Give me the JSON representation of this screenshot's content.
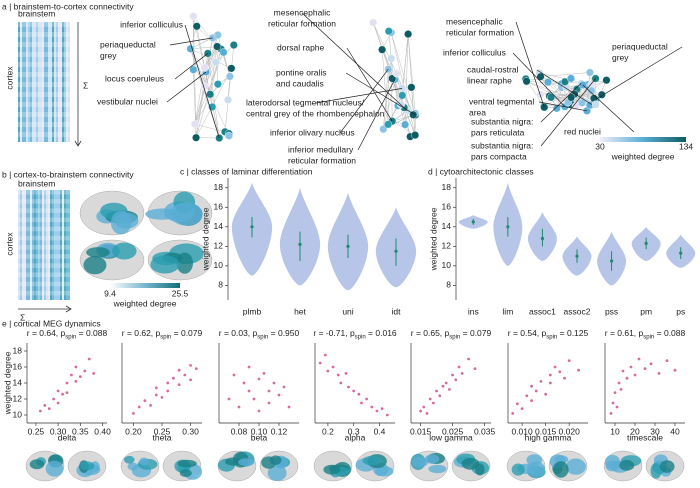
{
  "panel_a": {
    "title": "a | brainstem-to-cortex connectivity",
    "brainstem": "brainstem",
    "cortex": "cortex",
    "sum": "Σ",
    "labels": [
      [
        "inferior colliculus"
      ],
      [
        "periaqueductal",
        "grey"
      ],
      [
        "locus coeruleus"
      ],
      [
        "vestibular nuclei"
      ],
      [
        "mesencephalic",
        "reticular formation"
      ],
      [
        "dorsal raphe"
      ],
      [
        "pontine oralis",
        "and caudalis"
      ],
      [
        "laterodorsal tegmental nucleus/",
        "central grey of the rhombencephalon"
      ],
      [
        "inferior olivary nucleus"
      ],
      [
        "inferior medullary",
        "reticular formation"
      ],
      [
        "mesencephalic",
        "reticular formation"
      ],
      [
        "periaqueductal",
        "grey"
      ],
      [
        "inferior colliculus"
      ],
      [
        "caudal-rostral",
        "linear raphe"
      ],
      [
        "ventral tegmental",
        "area"
      ],
      [
        "substantia nigra:",
        "pars reticulata"
      ],
      [
        "red nuclei"
      ],
      [
        "substantia nigra:",
        "pars compacta"
      ]
    ],
    "colorbar": {
      "ticks": [
        30,
        134
      ],
      "label": "weighted degree"
    }
  },
  "panel_b": {
    "title": "b | cortex-to-brainstem connectivity",
    "brainstem": "brainstem",
    "cortex": "cortex",
    "sum": "Σ",
    "colorbar": {
      "ticks": [
        9.4,
        25.5
      ],
      "label": "weighted degree"
    }
  },
  "panel_e": {
    "title": "e | cortical MEG dynamics"
  },
  "chart_data": [
    {
      "type": "violin",
      "title": "c | classes of laminar differentiation",
      "ylabel": "weighted degree",
      "categories": [
        "plmb",
        "het",
        "uni",
        "idt"
      ],
      "median": [
        14,
        12.2,
        12,
        11.5
      ],
      "q1": [
        12.9,
        10.5,
        10.8,
        10
      ],
      "q3": [
        15,
        13.5,
        13.2,
        12.8
      ],
      "min": [
        9,
        8,
        7.5,
        7.8
      ],
      "max": [
        18.5,
        18,
        17.5,
        16
      ],
      "ylim": [
        6.5,
        19
      ],
      "yticks": [
        8,
        10,
        12,
        14,
        16,
        18
      ],
      "color": "#b7c5e8",
      "median_color": "#1f8a70"
    },
    {
      "type": "violin",
      "title": "d | cytoarchitectonic classes",
      "ylabel": "weighted degree",
      "categories": [
        "ins",
        "lim",
        "assoc1",
        "assoc2",
        "pss",
        "pm",
        "ps"
      ],
      "median": [
        14.5,
        14,
        12.8,
        11,
        10.5,
        12.3,
        11.3
      ],
      "q1": [
        14.2,
        13,
        12,
        10.3,
        9.5,
        11.7,
        10.7
      ],
      "q3": [
        14.8,
        15,
        13.8,
        11.7,
        11.5,
        12.9,
        11.9
      ],
      "min": [
        13.8,
        10,
        10.5,
        9,
        8,
        10.5,
        9.8
      ],
      "max": [
        15.2,
        18.5,
        15.5,
        13,
        13.5,
        14,
        13.2
      ],
      "ylim": [
        6.5,
        19
      ],
      "yticks": [
        8,
        10,
        12,
        14,
        16,
        18
      ],
      "color": "#b7c5e8",
      "median_color": "#1f8a70"
    },
    {
      "type": "scatter",
      "title": [
        "r = 0.64, p",
        "spin",
        " = 0.088"
      ],
      "xlabel": "delta",
      "ylabel": "weighted degree",
      "color": "#d66aa0",
      "x": [
        0.26,
        0.27,
        0.28,
        0.29,
        0.3,
        0.3,
        0.31,
        0.32,
        0.32,
        0.33,
        0.34,
        0.34,
        0.35,
        0.36,
        0.37,
        0.38
      ],
      "y": [
        10.5,
        11.2,
        10.8,
        12,
        11.5,
        13,
        12.6,
        14,
        12.8,
        15,
        14.2,
        16,
        14.8,
        15.5,
        17,
        15.2
      ],
      "xlim": [
        0.23,
        0.41
      ],
      "xticks": [
        0.25,
        {
          "value": 0.3,
          "label": "0.30"
        },
        0.35,
        {
          "value": 0.4,
          "label": "0.40"
        }
      ],
      "ylim": [
        9,
        19
      ],
      "yticks": [
        10,
        12,
        14,
        16,
        18
      ]
    },
    {
      "type": "scatter",
      "title": [
        "r = 0.62, p",
        "spin",
        " = 0.079"
      ],
      "xlabel": "theta",
      "color": "#d66aa0",
      "x": [
        0.2,
        0.21,
        0.22,
        0.23,
        0.24,
        0.24,
        0.25,
        0.26,
        0.26,
        0.27,
        0.28,
        0.28,
        0.29,
        0.3,
        0.3,
        0.31
      ],
      "y": [
        10.2,
        11,
        11.8,
        11.2,
        12.5,
        13.4,
        12.2,
        14,
        13,
        14.6,
        13.8,
        15.6,
        15,
        16.2,
        14.4,
        15.8
      ],
      "xlim": [
        0.18,
        0.32
      ],
      "xticks": [
        {
          "value": 0.2,
          "label": "0.20"
        },
        0.25,
        {
          "value": 0.3,
          "label": "0.30"
        }
      ],
      "ylim": [
        9,
        19
      ]
    },
    {
      "type": "scatter",
      "title": [
        "r = 0.03, p",
        "spin",
        " = 0.950"
      ],
      "xlabel": "beta",
      "color": "#d66aa0",
      "x": [
        0.07,
        0.075,
        0.08,
        0.085,
        0.09,
        0.09,
        0.095,
        0.1,
        0.1,
        0.105,
        0.11,
        0.11,
        0.115,
        0.12,
        0.125,
        0.13
      ],
      "y": [
        12,
        15,
        11,
        14,
        13,
        16,
        12,
        14.5,
        10.5,
        15.2,
        13,
        11.5,
        14,
        12.5,
        13.5,
        11
      ],
      "xlim": [
        0.06,
        0.14
      ],
      "xticks": [
        0.08,
        {
          "value": 0.1,
          "label": "0.10"
        },
        0.12
      ],
      "ylim": [
        9,
        19
      ]
    },
    {
      "type": "scatter",
      "title": [
        "r = -0.71, p",
        "spin",
        " = 0.016"
      ],
      "xlabel": "alpha",
      "color": "#d66aa0",
      "x": [
        0.17,
        0.19,
        0.2,
        0.22,
        0.24,
        0.25,
        0.27,
        0.28,
        0.3,
        0.32,
        0.33,
        0.35,
        0.37,
        0.39,
        0.41,
        0.43
      ],
      "y": [
        16.5,
        17.5,
        15.5,
        16,
        15,
        14,
        15.2,
        13.5,
        13,
        12.6,
        11.5,
        12,
        11,
        10.5,
        10.8,
        10
      ],
      "xlim": [
        0.15,
        0.46
      ],
      "xticks": [
        0.2,
        0.3,
        0.4
      ],
      "ylim": [
        9,
        19
      ]
    },
    {
      "type": "scatter",
      "title": [
        "r = 0.65, p",
        "spin",
        " = 0.079"
      ],
      "xlabel": "low gamma",
      "color": "#d66aa0",
      "x": [
        0.015,
        0.016,
        0.017,
        0.018,
        0.019,
        0.02,
        0.021,
        0.022,
        0.023,
        0.024,
        0.025,
        0.026,
        0.027,
        0.028,
        0.03,
        0.032
      ],
      "y": [
        10.5,
        11,
        10.2,
        12,
        11.5,
        13,
        12.4,
        13.6,
        14,
        13.2,
        15,
        14.4,
        16,
        15.2,
        17,
        15.8
      ],
      "xlim": [
        0.012,
        0.037
      ],
      "xticks": [
        0.015,
        0.025,
        0.035
      ],
      "ylim": [
        9,
        19
      ]
    },
    {
      "type": "scatter",
      "title": [
        "r = 0.54, p",
        "spin",
        " = 0.125"
      ],
      "xlabel": "high gamma",
      "color": "#d66aa0",
      "x": [
        0.008,
        0.009,
        0.01,
        0.011,
        0.012,
        0.012,
        0.013,
        0.014,
        0.015,
        0.016,
        0.016,
        0.017,
        0.018,
        0.019,
        0.02,
        0.022
      ],
      "y": [
        10.2,
        11.4,
        10.8,
        12.4,
        11.8,
        13.6,
        13,
        14.2,
        12.6,
        15,
        14,
        16,
        15.4,
        14.6,
        16.8,
        15.6
      ],
      "xlim": [
        0.007,
        0.024
      ],
      "xticks": [
        {
          "value": 0.01,
          "label": "0.010"
        },
        0.015,
        {
          "value": 0.02,
          "label": "0.020"
        }
      ],
      "ylim": [
        9,
        19
      ]
    },
    {
      "type": "scatter",
      "title": [
        "r = 0.61, p",
        "spin",
        " = 0.088"
      ],
      "xlabel": "timescale",
      "color": "#d66aa0",
      "x": [
        8,
        9,
        10,
        11,
        12,
        13,
        14,
        16,
        18,
        20,
        22,
        25,
        28,
        32,
        36,
        40
      ],
      "y": [
        10.2,
        11.5,
        12.8,
        11,
        14,
        13.2,
        15.5,
        14.6,
        16,
        15,
        17,
        15.8,
        16.4,
        15.2,
        16.8,
        15.6
      ],
      "xlim": [
        5,
        45
      ],
      "xticks": [
        10,
        20,
        30,
        40
      ],
      "ylim": [
        9,
        19
      ]
    }
  ]
}
